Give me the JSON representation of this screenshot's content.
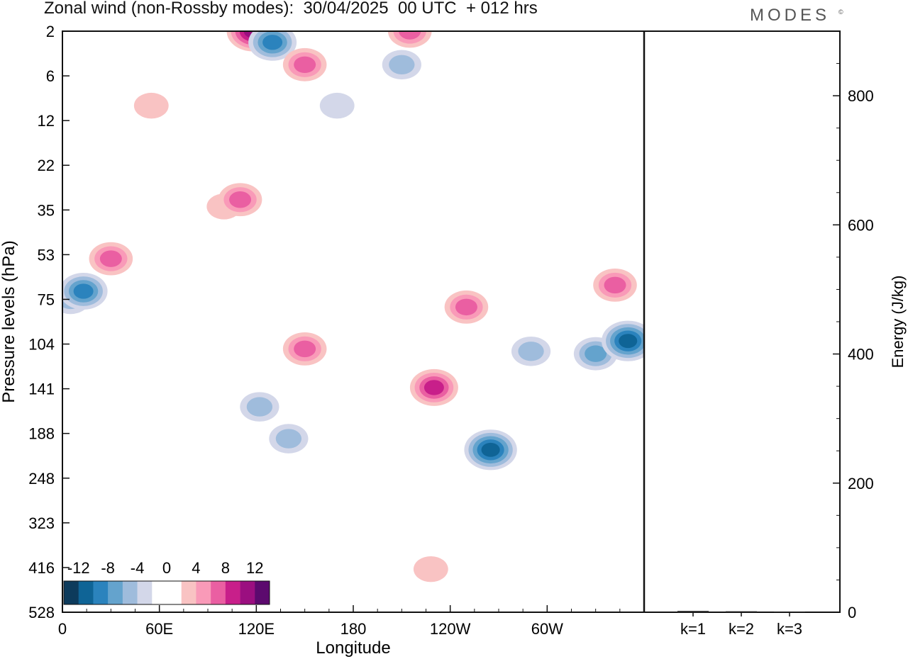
{
  "title": "Zonal wind (non-Rossby modes):  30/04/2025  00 UTC  + 012 hrs",
  "brand": "MODES",
  "brand_mark": "©",
  "chart_data": [
    {
      "type": "heatmap",
      "title": "Zonal wind (non-Rossby modes):  30/04/2025  00 UTC  + 012 hrs",
      "xlabel": "Longitude",
      "ylabel": "Pressure levels (hPa)",
      "x_ticks": [
        "0",
        "60E",
        "120E",
        "180",
        "120W",
        "60W"
      ],
      "y_ticks": [
        "2",
        "6",
        "12",
        "22",
        "35",
        "53",
        "75",
        "104",
        "141",
        "188",
        "248",
        "323",
        "416",
        "528"
      ],
      "colorbar": {
        "labels": [
          "-12",
          "-8",
          "-4",
          "0",
          "4",
          "8",
          "12"
        ],
        "colors": [
          "#0d3b5c",
          "#0f6496",
          "#2b83bd",
          "#64a3cd",
          "#9fbcdc",
          "#d3d7e9",
          "#ffffff",
          "#ffffff",
          "#f9c3c3",
          "#f99ab8",
          "#ea5fa2",
          "#c81f8a",
          "#9b0f80",
          "#5c0a6e"
        ]
      },
      "features": [
        {
          "lon": 5,
          "level": 75,
          "value": -6
        },
        {
          "lon": 13,
          "level": 71,
          "value": -10
        },
        {
          "lon": 30,
          "level": 55,
          "value": 8
        },
        {
          "lon": 55,
          "level": 10,
          "value": 4
        },
        {
          "lon": 100,
          "level": 34,
          "value": 4
        },
        {
          "lon": 110,
          "level": 32,
          "value": 8
        },
        {
          "lon": 118,
          "level": 2,
          "value": 12
        },
        {
          "lon": 130,
          "level": 3,
          "value": -10
        },
        {
          "lon": 150,
          "level": 5,
          "value": 8
        },
        {
          "lon": 122,
          "level": 160,
          "value": -6
        },
        {
          "lon": 140,
          "level": 195,
          "value": -6
        },
        {
          "lon": 150,
          "level": 108,
          "value": 8
        },
        {
          "lon": 170,
          "level": 10,
          "value": -4
        },
        {
          "lon": 210,
          "level": 5,
          "value": -6
        },
        {
          "lon": 215,
          "level": 2,
          "value": 8
        },
        {
          "lon": 230,
          "level": 140,
          "value": 10
        },
        {
          "lon": 250,
          "level": 80,
          "value": 8
        },
        {
          "lon": 265,
          "level": 210,
          "value": -12
        },
        {
          "lon": 290,
          "level": 110,
          "value": -6
        },
        {
          "lon": 330,
          "level": 112,
          "value": -8
        },
        {
          "lon": 350,
          "level": 102,
          "value": -12
        },
        {
          "lon": 342,
          "level": 68,
          "value": 8
        },
        {
          "lon": 228,
          "level": 420,
          "value": 4
        }
      ]
    },
    {
      "type": "bar",
      "ylabel": "Energy (J/kg)",
      "categories": [
        "k=1",
        "k=2",
        "k=3"
      ],
      "values": [
        2,
        1.5,
        1
      ],
      "ylim": [
        0,
        900
      ],
      "y_ticks": [
        0,
        200,
        400,
        600,
        800
      ]
    }
  ]
}
